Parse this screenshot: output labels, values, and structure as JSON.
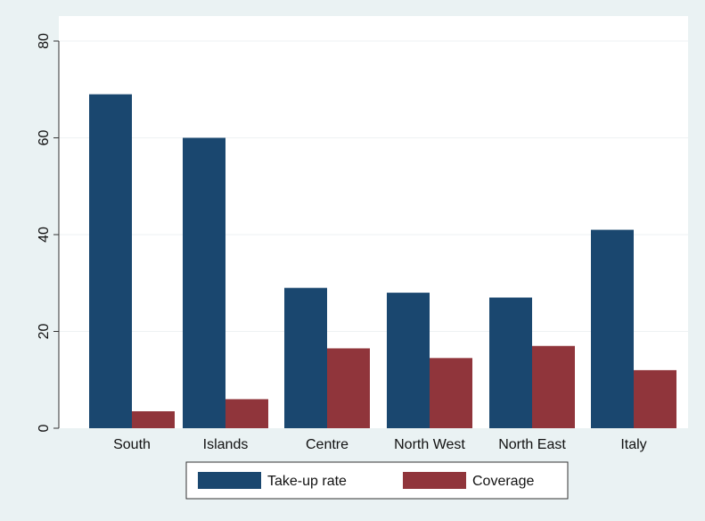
{
  "chart_data": {
    "type": "bar",
    "title": "",
    "xlabel": "",
    "ylabel": "",
    "categories": [
      "South",
      "Islands",
      "Centre",
      "North West",
      "North East",
      "Italy"
    ],
    "series": [
      {
        "name": "Take-up rate",
        "color": "#1a476f",
        "values": [
          69,
          60,
          29,
          28,
          27,
          41
        ]
      },
      {
        "name": "Coverage",
        "color": "#90353b",
        "values": [
          3.5,
          6,
          16.5,
          14.5,
          17,
          12
        ]
      }
    ],
    "ylim": [
      0,
      80
    ],
    "yticks": [
      "0",
      "20",
      "40",
      "60",
      "80"
    ],
    "grid": true,
    "legend_position": "bottom"
  }
}
